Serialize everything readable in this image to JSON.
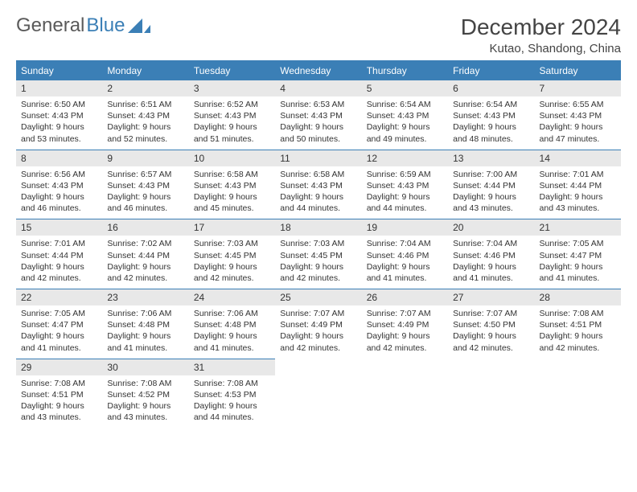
{
  "logo": {
    "word1": "General",
    "word2": "Blue"
  },
  "title": "December 2024",
  "location": "Kutao, Shandong, China",
  "header_bg": "#3b7fb6",
  "header_text_color": "#ffffff",
  "daynum_bg": "#e8e8e8",
  "border_color": "#3b7fb6",
  "text_color": "#333333",
  "font_family": "Arial",
  "title_fontsize": 28,
  "location_fontsize": 15,
  "header_fontsize": 12,
  "body_fontsize": 10.5,
  "day_headers": [
    "Sunday",
    "Monday",
    "Tuesday",
    "Wednesday",
    "Thursday",
    "Friday",
    "Saturday"
  ],
  "days": [
    {
      "n": "1",
      "sunrise": "6:50 AM",
      "sunset": "4:43 PM",
      "daylight": "9 hours and 53 minutes."
    },
    {
      "n": "2",
      "sunrise": "6:51 AM",
      "sunset": "4:43 PM",
      "daylight": "9 hours and 52 minutes."
    },
    {
      "n": "3",
      "sunrise": "6:52 AM",
      "sunset": "4:43 PM",
      "daylight": "9 hours and 51 minutes."
    },
    {
      "n": "4",
      "sunrise": "6:53 AM",
      "sunset": "4:43 PM",
      "daylight": "9 hours and 50 minutes."
    },
    {
      "n": "5",
      "sunrise": "6:54 AM",
      "sunset": "4:43 PM",
      "daylight": "9 hours and 49 minutes."
    },
    {
      "n": "6",
      "sunrise": "6:54 AM",
      "sunset": "4:43 PM",
      "daylight": "9 hours and 48 minutes."
    },
    {
      "n": "7",
      "sunrise": "6:55 AM",
      "sunset": "4:43 PM",
      "daylight": "9 hours and 47 minutes."
    },
    {
      "n": "8",
      "sunrise": "6:56 AM",
      "sunset": "4:43 PM",
      "daylight": "9 hours and 46 minutes."
    },
    {
      "n": "9",
      "sunrise": "6:57 AM",
      "sunset": "4:43 PM",
      "daylight": "9 hours and 46 minutes."
    },
    {
      "n": "10",
      "sunrise": "6:58 AM",
      "sunset": "4:43 PM",
      "daylight": "9 hours and 45 minutes."
    },
    {
      "n": "11",
      "sunrise": "6:58 AM",
      "sunset": "4:43 PM",
      "daylight": "9 hours and 44 minutes."
    },
    {
      "n": "12",
      "sunrise": "6:59 AM",
      "sunset": "4:43 PM",
      "daylight": "9 hours and 44 minutes."
    },
    {
      "n": "13",
      "sunrise": "7:00 AM",
      "sunset": "4:44 PM",
      "daylight": "9 hours and 43 minutes."
    },
    {
      "n": "14",
      "sunrise": "7:01 AM",
      "sunset": "4:44 PM",
      "daylight": "9 hours and 43 minutes."
    },
    {
      "n": "15",
      "sunrise": "7:01 AM",
      "sunset": "4:44 PM",
      "daylight": "9 hours and 42 minutes."
    },
    {
      "n": "16",
      "sunrise": "7:02 AM",
      "sunset": "4:44 PM",
      "daylight": "9 hours and 42 minutes."
    },
    {
      "n": "17",
      "sunrise": "7:03 AM",
      "sunset": "4:45 PM",
      "daylight": "9 hours and 42 minutes."
    },
    {
      "n": "18",
      "sunrise": "7:03 AM",
      "sunset": "4:45 PM",
      "daylight": "9 hours and 42 minutes."
    },
    {
      "n": "19",
      "sunrise": "7:04 AM",
      "sunset": "4:46 PM",
      "daylight": "9 hours and 41 minutes."
    },
    {
      "n": "20",
      "sunrise": "7:04 AM",
      "sunset": "4:46 PM",
      "daylight": "9 hours and 41 minutes."
    },
    {
      "n": "21",
      "sunrise": "7:05 AM",
      "sunset": "4:47 PM",
      "daylight": "9 hours and 41 minutes."
    },
    {
      "n": "22",
      "sunrise": "7:05 AM",
      "sunset": "4:47 PM",
      "daylight": "9 hours and 41 minutes."
    },
    {
      "n": "23",
      "sunrise": "7:06 AM",
      "sunset": "4:48 PM",
      "daylight": "9 hours and 41 minutes."
    },
    {
      "n": "24",
      "sunrise": "7:06 AM",
      "sunset": "4:48 PM",
      "daylight": "9 hours and 41 minutes."
    },
    {
      "n": "25",
      "sunrise": "7:07 AM",
      "sunset": "4:49 PM",
      "daylight": "9 hours and 42 minutes."
    },
    {
      "n": "26",
      "sunrise": "7:07 AM",
      "sunset": "4:49 PM",
      "daylight": "9 hours and 42 minutes."
    },
    {
      "n": "27",
      "sunrise": "7:07 AM",
      "sunset": "4:50 PM",
      "daylight": "9 hours and 42 minutes."
    },
    {
      "n": "28",
      "sunrise": "7:08 AM",
      "sunset": "4:51 PM",
      "daylight": "9 hours and 42 minutes."
    },
    {
      "n": "29",
      "sunrise": "7:08 AM",
      "sunset": "4:51 PM",
      "daylight": "9 hours and 43 minutes."
    },
    {
      "n": "30",
      "sunrise": "7:08 AM",
      "sunset": "4:52 PM",
      "daylight": "9 hours and 43 minutes."
    },
    {
      "n": "31",
      "sunrise": "7:08 AM",
      "sunset": "4:53 PM",
      "daylight": "9 hours and 44 minutes."
    }
  ],
  "labels": {
    "sunrise": "Sunrise:",
    "sunset": "Sunset:",
    "daylight": "Daylight:"
  }
}
